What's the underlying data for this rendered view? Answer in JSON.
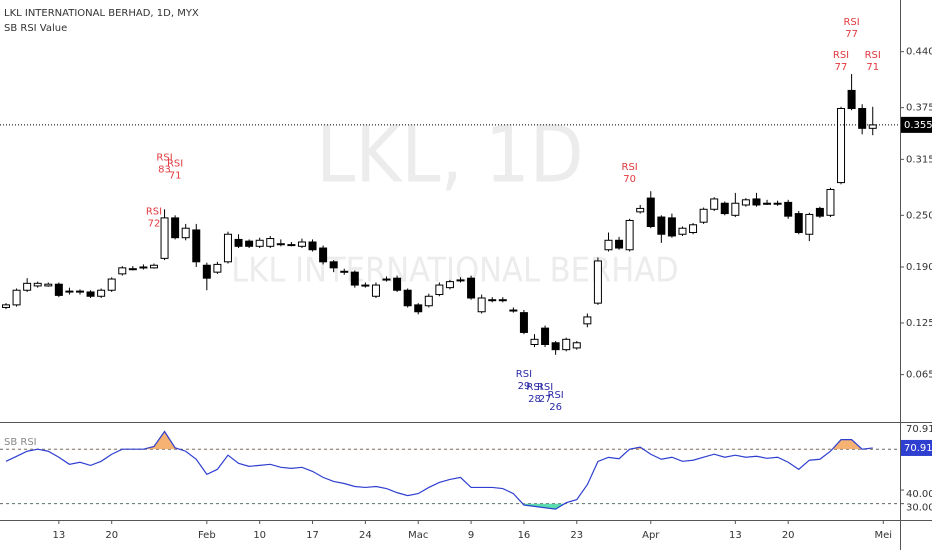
{
  "chart_data": [
    {
      "type": "candlestick",
      "title": "LKL INTERNATIONAL BERHAD, 1D, MYX",
      "subtitle": "SB RSI Value",
      "watermark": [
        "LKL, 1D",
        "LKL INTERNATIONAL BERHAD"
      ],
      "categories": [
        null,
        null,
        null,
        null,
        null,
        "13",
        null,
        null,
        null,
        null,
        "20",
        null,
        null,
        null,
        null,
        null,
        null,
        null,
        null,
        "Feb",
        null,
        null,
        null,
        null,
        "10",
        null,
        null,
        null,
        null,
        "17",
        null,
        null,
        null,
        null,
        "24",
        null,
        null,
        null,
        null,
        "Mac",
        null,
        null,
        null,
        null,
        "9",
        null,
        null,
        null,
        null,
        "16",
        null,
        null,
        null,
        null,
        "23",
        null,
        null,
        null,
        null,
        null,
        null,
        "Apr",
        null,
        null,
        null,
        null,
        null,
        null,
        null,
        "13",
        null,
        null,
        null,
        null,
        "20",
        null,
        null,
        null,
        null,
        null,
        null,
        null,
        null,
        "Mei"
      ],
      "open": [
        0.143,
        0.146,
        0.163,
        0.168,
        0.168,
        0.17,
        0.162,
        0.162,
        0.161,
        0.156,
        0.163,
        0.182,
        0.188,
        0.189,
        0.189,
        0.2,
        0.247,
        0.224,
        0.233,
        0.192,
        0.184,
        0.196,
        0.222,
        0.22,
        0.214,
        0.214,
        0.217,
        0.215,
        0.214,
        0.219,
        0.212,
        0.196,
        0.185,
        0.184,
        0.169,
        0.156,
        0.176,
        0.177,
        0.163,
        0.146,
        0.145,
        0.158,
        0.166,
        0.175,
        0.177,
        0.138,
        0.152,
        0.152,
        0.14,
        0.137,
        0.1,
        0.119,
        0.102,
        0.094,
        0.096,
        0.124,
        0.148,
        0.21,
        0.221,
        0.21,
        0.254,
        0.27,
        0.248,
        0.247,
        0.228,
        0.23,
        0.242,
        0.257,
        0.264,
        0.25,
        0.262,
        0.269,
        0.264,
        0.264,
        0.265,
        0.252,
        0.228,
        0.258,
        0.25,
        0.288,
        0.395,
        0.374,
        0.351,
        null
      ],
      "high": [
        0.148,
        0.165,
        0.177,
        0.173,
        0.172,
        0.172,
        0.166,
        0.164,
        0.163,
        0.165,
        0.178,
        0.191,
        0.191,
        0.193,
        0.194,
        0.257,
        0.25,
        0.24,
        0.24,
        0.195,
        0.196,
        0.231,
        0.228,
        0.222,
        0.224,
        0.226,
        0.222,
        0.219,
        0.223,
        0.222,
        0.215,
        0.198,
        0.188,
        0.186,
        0.172,
        0.172,
        0.179,
        0.18,
        0.165,
        0.148,
        0.159,
        0.172,
        0.175,
        0.178,
        0.18,
        0.158,
        0.155,
        0.155,
        0.143,
        0.14,
        0.112,
        0.122,
        0.104,
        0.108,
        0.104,
        0.136,
        0.201,
        0.23,
        0.225,
        0.246,
        0.262,
        0.278,
        0.25,
        0.252,
        0.237,
        0.241,
        0.259,
        0.271,
        0.266,
        0.276,
        0.27,
        0.276,
        0.268,
        0.267,
        0.268,
        0.255,
        0.253,
        0.26,
        0.282,
        0.376,
        0.414,
        0.379,
        0.376,
        null
      ],
      "low": [
        0.141,
        0.144,
        0.161,
        0.166,
        0.167,
        0.155,
        0.158,
        0.158,
        0.154,
        0.154,
        0.161,
        0.18,
        0.186,
        0.187,
        0.188,
        0.198,
        0.222,
        0.221,
        0.19,
        0.163,
        0.182,
        0.194,
        0.212,
        0.212,
        0.212,
        0.212,
        0.214,
        0.214,
        0.212,
        0.208,
        0.193,
        0.184,
        0.181,
        0.166,
        0.166,
        0.154,
        0.173,
        0.161,
        0.143,
        0.135,
        0.143,
        0.156,
        0.164,
        0.172,
        0.152,
        0.136,
        0.149,
        0.149,
        0.137,
        0.112,
        0.097,
        0.097,
        0.088,
        0.092,
        0.094,
        0.12,
        0.146,
        0.208,
        0.21,
        0.208,
        0.252,
        0.235,
        0.218,
        0.224,
        0.226,
        0.228,
        0.24,
        0.255,
        0.25,
        0.248,
        0.26,
        0.26,
        0.262,
        0.261,
        0.246,
        0.228,
        0.22,
        0.247,
        0.248,
        0.286,
        0.372,
        0.344,
        0.343,
        null
      ],
      "close": [
        0.146,
        0.163,
        0.171,
        0.171,
        0.17,
        0.157,
        0.162,
        0.161,
        0.156,
        0.163,
        0.176,
        0.189,
        0.188,
        0.19,
        0.192,
        0.247,
        0.224,
        0.235,
        0.196,
        0.177,
        0.193,
        0.228,
        0.214,
        0.214,
        0.221,
        0.223,
        0.217,
        0.216,
        0.219,
        0.21,
        0.196,
        0.189,
        0.184,
        0.169,
        0.169,
        0.169,
        0.176,
        0.163,
        0.145,
        0.138,
        0.156,
        0.169,
        0.173,
        0.175,
        0.154,
        0.154,
        0.152,
        0.152,
        0.14,
        0.114,
        0.106,
        0.1,
        0.094,
        0.106,
        0.102,
        0.132,
        0.197,
        0.221,
        0.212,
        0.244,
        0.258,
        0.237,
        0.228,
        0.226,
        0.235,
        0.239,
        0.257,
        0.269,
        0.252,
        0.264,
        0.268,
        0.262,
        0.264,
        0.264,
        0.249,
        0.23,
        0.251,
        0.249,
        0.28,
        0.374,
        0.374,
        0.351,
        0.355,
        null
      ],
      "up_color": "#ffffff",
      "down_color": "#000000",
      "rsi_label_text": "RSI",
      "rsi_labels": [
        null,
        null,
        null,
        null,
        null,
        null,
        null,
        null,
        null,
        null,
        null,
        null,
        null,
        null,
        72,
        83,
        71,
        null,
        null,
        null,
        null,
        null,
        null,
        null,
        null,
        null,
        null,
        null,
        null,
        null,
        null,
        null,
        null,
        null,
        null,
        null,
        null,
        null,
        null,
        null,
        null,
        null,
        null,
        null,
        null,
        null,
        null,
        null,
        null,
        29,
        28,
        27,
        26,
        null,
        null,
        null,
        null,
        null,
        null,
        70,
        null,
        null,
        null,
        null,
        null,
        null,
        null,
        null,
        null,
        null,
        null,
        null,
        null,
        null,
        null,
        null,
        null,
        null,
        null,
        77,
        77,
        null,
        71,
        null
      ],
      "high_label_color": "#e0393e",
      "low_label_color": "#2b2ba6",
      "last_price": {
        "value": 0.355,
        "label": "0.355"
      },
      "ylim": [
        0.01,
        0.5
      ],
      "yticks": [
        {
          "value": 0.065,
          "label": "0.065"
        },
        {
          "value": 0.125,
          "label": "0.125"
        },
        {
          "value": 0.19,
          "label": "0.190"
        },
        {
          "value": 0.25,
          "label": "0.250"
        },
        {
          "value": 0.315,
          "label": "0.315"
        },
        {
          "value": 0.375,
          "label": "0.375"
        },
        {
          "value": 0.44,
          "label": "0.440"
        }
      ],
      "grid": false
    },
    {
      "type": "line",
      "title": "SB RSI",
      "values": [
        61.1,
        64.8,
        68.5,
        70,
        68.5,
        64.1,
        58.9,
        60.4,
        58.1,
        61.1,
        66.3,
        70,
        70,
        70,
        72,
        83,
        71,
        68.5,
        62.6,
        51.5,
        55.2,
        65.6,
        59.6,
        57.4,
        58.1,
        58.9,
        56.7,
        55.9,
        56.7,
        53.7,
        49.3,
        46.3,
        44.8,
        42.6,
        41.9,
        42.6,
        41.1,
        38.1,
        35.9,
        37.4,
        41.9,
        45.6,
        47.8,
        49.3,
        41.9,
        41.9,
        41.9,
        41.1,
        37.4,
        29,
        28,
        27,
        26,
        30.7,
        33,
        44,
        61,
        64,
        63,
        70,
        71.5,
        66.3,
        62.6,
        64.1,
        61.1,
        61.9,
        64.1,
        66.3,
        64.1,
        65.6,
        64.1,
        64.8,
        63.3,
        64.1,
        60.4,
        55.2,
        61.9,
        62.6,
        68.5,
        77,
        77,
        70,
        70.91,
        null
      ],
      "color": "#2f3fd0",
      "overbought_color": "#f5a55a",
      "oversold_color": "#3fd6a0",
      "levels": [
        70,
        30
      ],
      "ylim": [
        18,
        88.5
      ],
      "yticks": [
        {
          "value": 70,
          "label": "70.00"
        },
        {
          "value": 40,
          "label": "40.00"
        },
        {
          "value": 30,
          "label": "30.00"
        }
      ],
      "grid": false
    }
  ]
}
